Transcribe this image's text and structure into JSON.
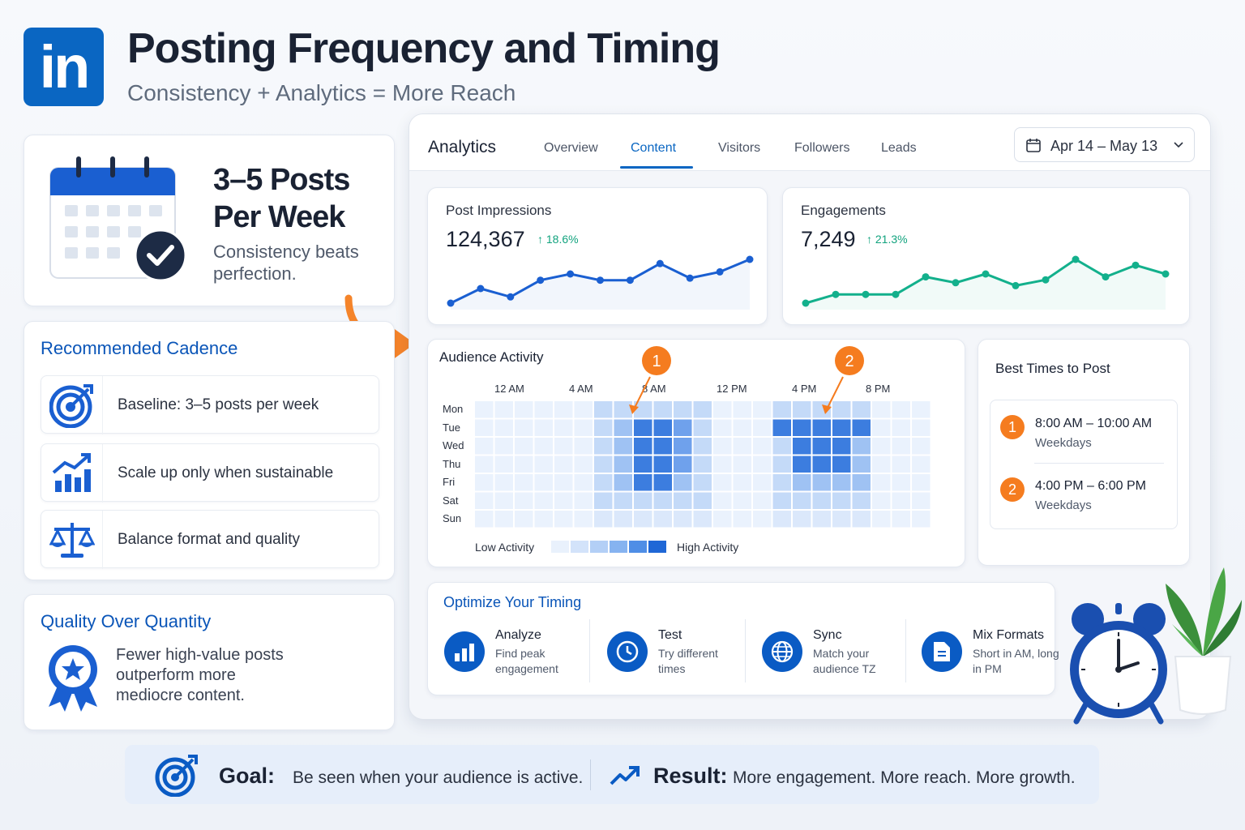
{
  "header": {
    "logo_text": "in",
    "title": "Posting Frequency and Timing",
    "subtitle": "Consistency + Analytics = More Reach"
  },
  "posts_card": {
    "title_line1": "3–5 Posts",
    "title_line2": "Per Week",
    "sub_line1": "Consistency beats",
    "sub_line2": "perfection."
  },
  "cadence": {
    "title": "Recommended Cadence",
    "items": [
      {
        "label": "Baseline: 3–5 posts per week",
        "icon": "target-icon"
      },
      {
        "label": "Scale up only when sustainable",
        "icon": "growth-chart-icon"
      },
      {
        "label": "Balance format and quality",
        "icon": "scale-icon"
      }
    ]
  },
  "quality": {
    "title": "Quality Over Quantity",
    "line1": "Fewer high-value posts",
    "line2": "outperform more",
    "line3": "mediocre content."
  },
  "analytics": {
    "title": "Analytics",
    "tabs": [
      "Overview",
      "Content",
      "Visitors",
      "Followers",
      "Leads"
    ],
    "active_tab": "Content",
    "date_range": "Apr 14 – May 13"
  },
  "metrics": {
    "impressions": {
      "label": "Post Impressions",
      "value": "124,367",
      "delta": "↑ 18.6%",
      "color": "#1a5fd1",
      "series": [
        3,
        10,
        6,
        14,
        17,
        14,
        14,
        22,
        15,
        18,
        24
      ]
    },
    "engagements": {
      "label": "Engagements",
      "value": "7,249",
      "delta": "↑ 21.3%",
      "color": "#13b08c",
      "series": [
        2,
        5,
        5,
        5,
        11,
        9,
        12,
        8,
        10,
        17,
        11,
        15,
        12
      ]
    }
  },
  "audience": {
    "title": "Audience Activity",
    "hours": [
      "12 AM",
      "4 AM",
      "8 AM",
      "12 PM",
      "4 PM",
      "8 PM"
    ],
    "days": [
      "Mon",
      "Tue",
      "Wed",
      "Thu",
      "Fri",
      "Sat",
      "Sun"
    ],
    "legend_low": "Low Activity",
    "legend_high": "High Activity",
    "marker1": "1",
    "marker2": "2"
  },
  "best_times": {
    "title": "Best Times to Post",
    "items": [
      {
        "badge": "1",
        "time": "8:00 AM – 10:00 AM",
        "sub": "Weekdays"
      },
      {
        "badge": "2",
        "time": "4:00 PM – 6:00 PM",
        "sub": "Weekdays"
      }
    ]
  },
  "optimize": {
    "title": "Optimize Your Timing",
    "items": [
      {
        "head": "Analyze",
        "sub": "Find peak engagement",
        "icon": "bar-chart-icon"
      },
      {
        "head": "Test",
        "sub": "Try different times",
        "icon": "clock-icon"
      },
      {
        "head": "Sync",
        "sub": "Match your audience TZ",
        "icon": "globe-icon"
      },
      {
        "head": "Mix Formats",
        "sub": "Short in AM, long in PM",
        "icon": "document-icon"
      }
    ]
  },
  "bottom": {
    "goal_label": "Goal:",
    "goal_text": "Be seen when your audience is active.",
    "result_label": "Result:",
    "result_text": "More engagement. More reach. More growth."
  },
  "colors": {
    "brand": "#0a66c2",
    "accent": "#f57c1f",
    "green": "#13b08c"
  }
}
